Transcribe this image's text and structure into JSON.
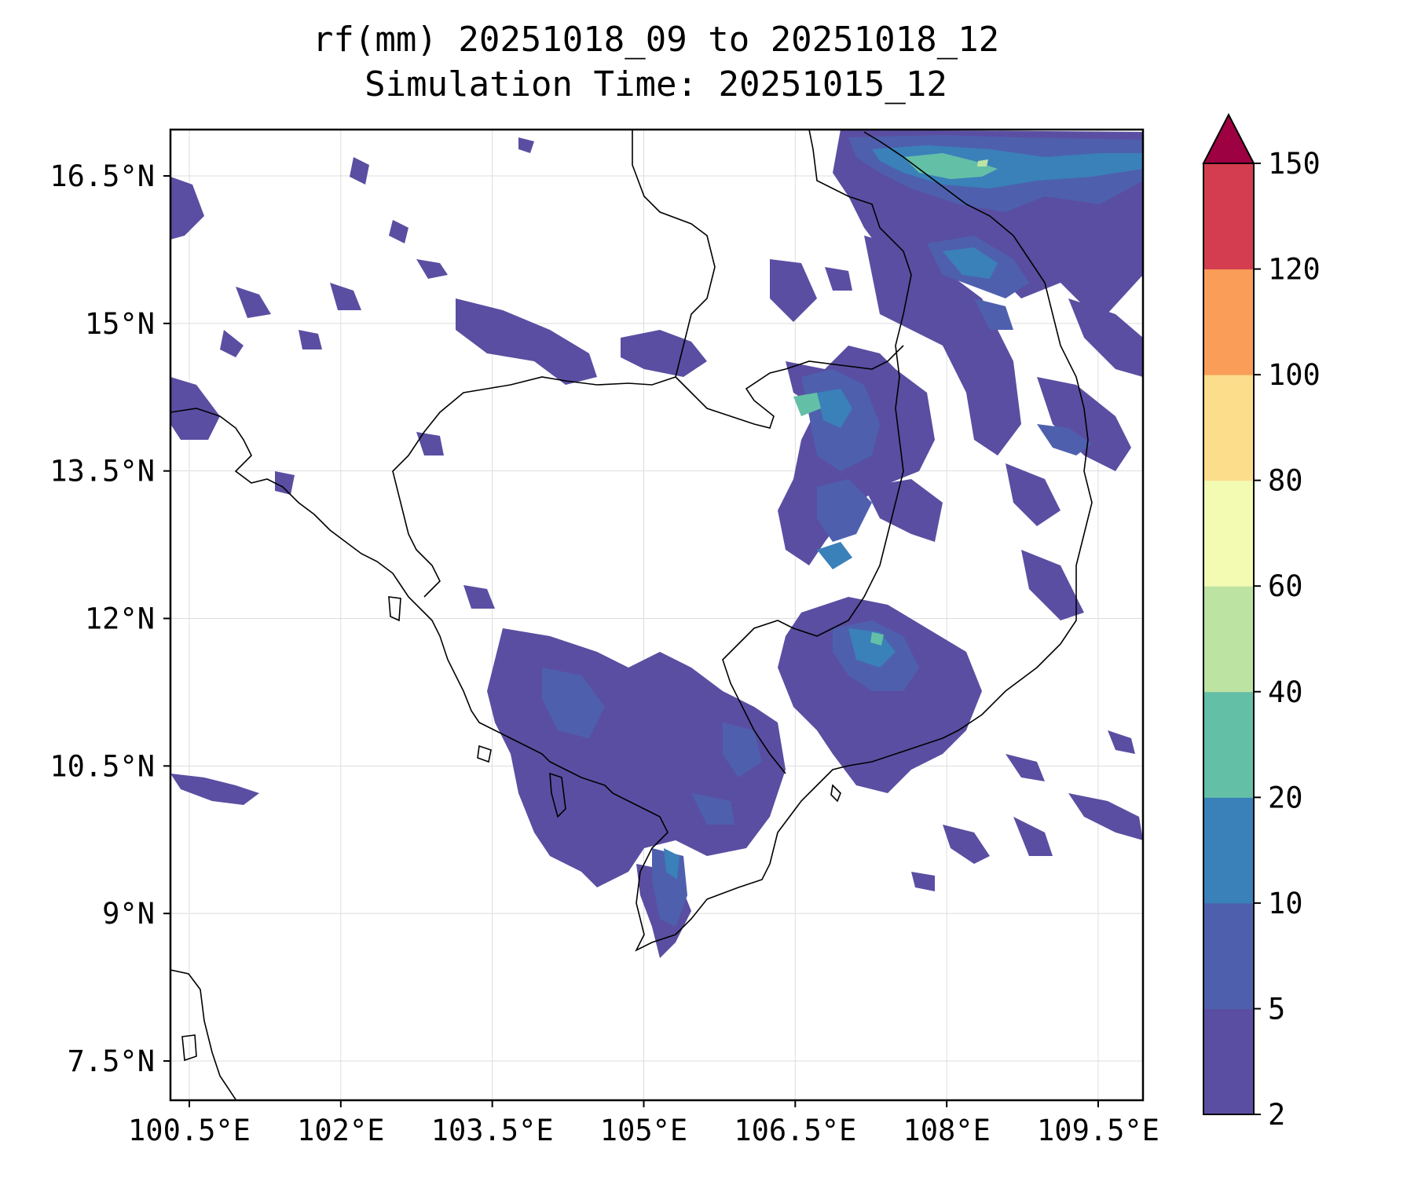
{
  "title": {
    "line1": "rf(mm) 20251018_09 to 20251018_12",
    "line2": "Simulation Time: 20251015_12"
  },
  "map": {
    "lon_range": [
      100.5,
      109.5
    ],
    "lat_range": [
      7.5,
      16.5
    ],
    "x_ticks": [
      {
        "value": 100.5,
        "label": "100.5°E"
      },
      {
        "value": 102.0,
        "label": "102°E"
      },
      {
        "value": 103.5,
        "label": "103.5°E"
      },
      {
        "value": 105.0,
        "label": "105°E"
      },
      {
        "value": 106.5,
        "label": "106.5°E"
      },
      {
        "value": 108.0,
        "label": "108°E"
      },
      {
        "value": 109.5,
        "label": "109.5°E"
      }
    ],
    "y_ticks": [
      {
        "value": 16.5,
        "label": "16.5°N"
      },
      {
        "value": 15.0,
        "label": "15°N"
      },
      {
        "value": 13.5,
        "label": "13.5°N"
      },
      {
        "value": 12.0,
        "label": "12°N"
      },
      {
        "value": 10.5,
        "label": "10.5°N"
      },
      {
        "value": 9.0,
        "label": "9°N"
      },
      {
        "value": 7.5,
        "label": "7.5°N"
      }
    ],
    "grid": true
  },
  "colorbar": {
    "levels": [
      "2",
      "5",
      "10",
      "20",
      "40",
      "60",
      "80",
      "100",
      "120",
      "150"
    ],
    "colors": [
      "#5a4ea2",
      "#4e60ad",
      "#3a80b9",
      "#64bfa7",
      "#bde3a3",
      "#f3fab1",
      "#fcdd8c",
      "#f99d59",
      "#d43d4f",
      "#9e0142"
    ],
    "extend": "max"
  }
}
